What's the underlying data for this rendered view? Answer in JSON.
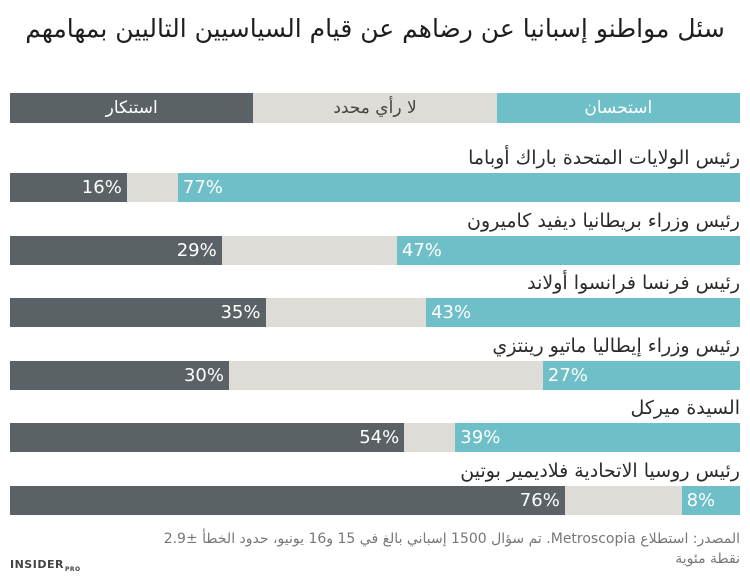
{
  "title": "سئل مواطنو إسبانيا عن رضاهم عن قيام السياسيين التاليين بمهامهم",
  "legend": {
    "disapprove": "استنكار",
    "no_opinion": "لا رأي محدد",
    "approve": "استحسان"
  },
  "colors": {
    "disapprove": "#5b6266",
    "no_opinion": "#dddcd6",
    "approve": "#6fbfc8",
    "legend_text_light": "#ffffff",
    "legend_text_dark": "#444444"
  },
  "chart_data": {
    "type": "bar",
    "stacked": true,
    "categories": [
      "رئيس الولايات المتحدة باراك أوباما",
      "رئيس وزراء بريطانيا ديفيد كاميرون",
      "رئيس فرنسا فرانسوا أولاند",
      "رئيس وزراء إيطاليا ماتيو رينتزي",
      "السيدة ميركل",
      "رئيس روسيا الاتحادية فلاديمير بوتين"
    ],
    "series": [
      {
        "name": "استنكار",
        "values": [
          16,
          29,
          35,
          30,
          54,
          76
        ]
      },
      {
        "name": "لا رأي محدد",
        "values": [
          7,
          24,
          22,
          43,
          7,
          16
        ]
      },
      {
        "name": "استحسان",
        "values": [
          77,
          47,
          43,
          27,
          39,
          8
        ]
      }
    ],
    "value_labels": {
      "disapprove": [
        "16%",
        "29%",
        "35%",
        "30%",
        "54%",
        "76%"
      ],
      "approve": [
        "77%",
        "47%",
        "43%",
        "27%",
        "39%",
        "8%"
      ]
    },
    "xlim": [
      0,
      100
    ]
  },
  "source": "المصدر: استطلاع Metroscopia. تم سؤال 1500 إسباني بالغ في 15 و16 يونيو، حدود الخطأ ±2.9 نقطة مئوية",
  "brand": {
    "name": "INSIDER",
    "suffix": "PRO"
  }
}
